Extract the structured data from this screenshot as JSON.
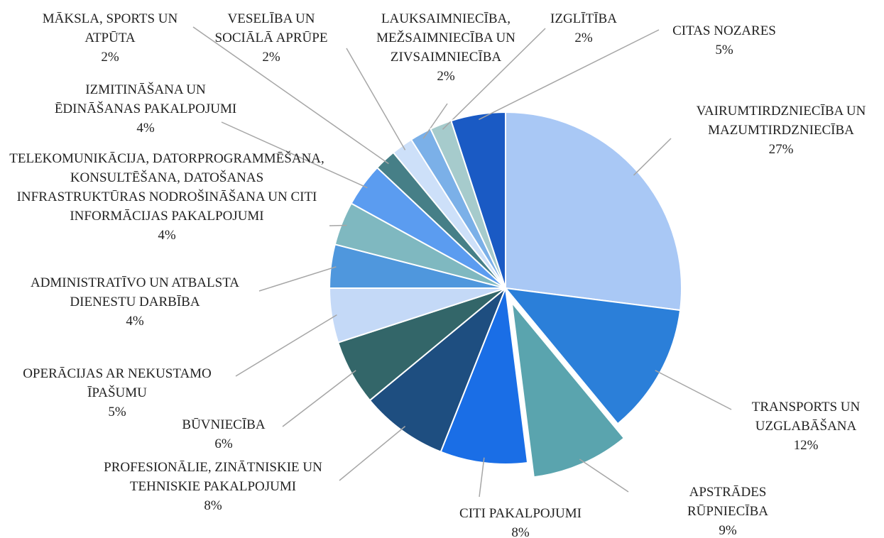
{
  "chart_data": {
    "type": "pie",
    "categories": [
      "VAIRUMTIRDZNIECĪBA UN MAZUMTIRDZNIECĪBA",
      "TRANSPORTS UN UZGLABĀŠANA",
      "APSTRĀDES RŪPNIECĪBA",
      "CITI PAKALPOJUMI",
      "PROFESIONĀLIE, ZINĀTNISKIE UN TEHNISKIE PAKALPOJUMI",
      "BŪVNIECĪBA",
      "OPERĀCIJAS AR NEKUSTAMO ĪPAŠUMU",
      "ADMINISTRATĪVO UN ATBALSTA DIENESTU DARBĪBA",
      "TELEKOMUNIKĀCIJA, DATORPROGRAMMĒŠANA, KONSULTĒŠANA, DATOŠANAS INFRASTRUKTŪRAS NODROŠINĀŠANA UN CITI INFORMĀCIJAS PAKALPOJUMI",
      "IZMITINĀŠANA UN ĒDINĀŠANAS PAKALPOJUMI",
      "MĀKSLA, SPORTS UN ATPŪTA",
      "VESELĪBA UN SOCIĀLĀ APRŪPE",
      "LAUKSAIMNIECĪBA, MEŽSAIMNIECĪBA UN ZIVSAIMNIECĪBA",
      "IZGLĪTĪBA",
      "CITAS NOZARES"
    ],
    "values": [
      27,
      12,
      9,
      8,
      8,
      6,
      5,
      4,
      4,
      4,
      2,
      2,
      2,
      2,
      5
    ],
    "value_labels": [
      "27%",
      "12%",
      "9%",
      "8%",
      "8%",
      "6%",
      "5%",
      "4%",
      "4%",
      "4%",
      "2%",
      "2%",
      "2%",
      "2%",
      "5%"
    ],
    "colors": [
      "#a9c8f5",
      "#2b7fd9",
      "#5aa4ae",
      "#1a6ee6",
      "#1e4e80",
      "#336669",
      "#c4d9f7",
      "#4f97dd",
      "#7fb8c0",
      "#5b9cf0",
      "#467f87",
      "#cde0f9",
      "#7bb0e8",
      "#a6cbcc",
      "#1a5ac4"
    ],
    "exploded_index": 2
  }
}
